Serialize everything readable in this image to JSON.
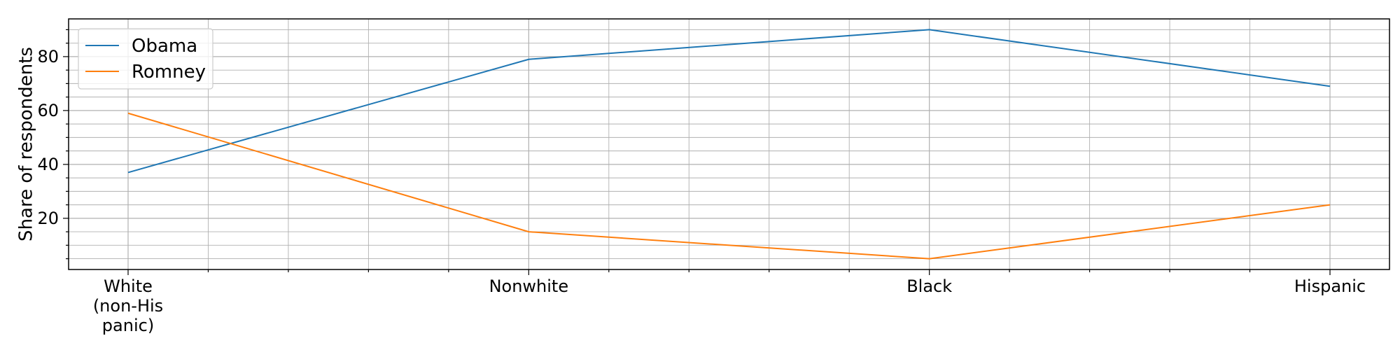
{
  "chart_data": {
    "type": "line",
    "categories": [
      "White (non-His panic)",
      "Nonwhite",
      "Black",
      "Hispanic"
    ],
    "category_label_lines": [
      [
        "White",
        "(non-His",
        "panic)"
      ],
      [
        "Nonwhite"
      ],
      [
        "Black"
      ],
      [
        "Hispanic"
      ]
    ],
    "series": [
      {
        "name": "Obama",
        "color": "#1f77b4",
        "values": [
          37,
          79,
          90,
          69
        ]
      },
      {
        "name": "Romney",
        "color": "#ff7f0e",
        "values": [
          59,
          15,
          5,
          25
        ]
      }
    ],
    "xlabel": "",
    "ylabel": "Share of respondents",
    "ylim": [
      1,
      94
    ],
    "yticks": [
      20,
      40,
      60,
      80
    ],
    "y_minor_step": 5,
    "x_minor_divisions": 5,
    "grid": true,
    "legend_position": "top-left"
  }
}
